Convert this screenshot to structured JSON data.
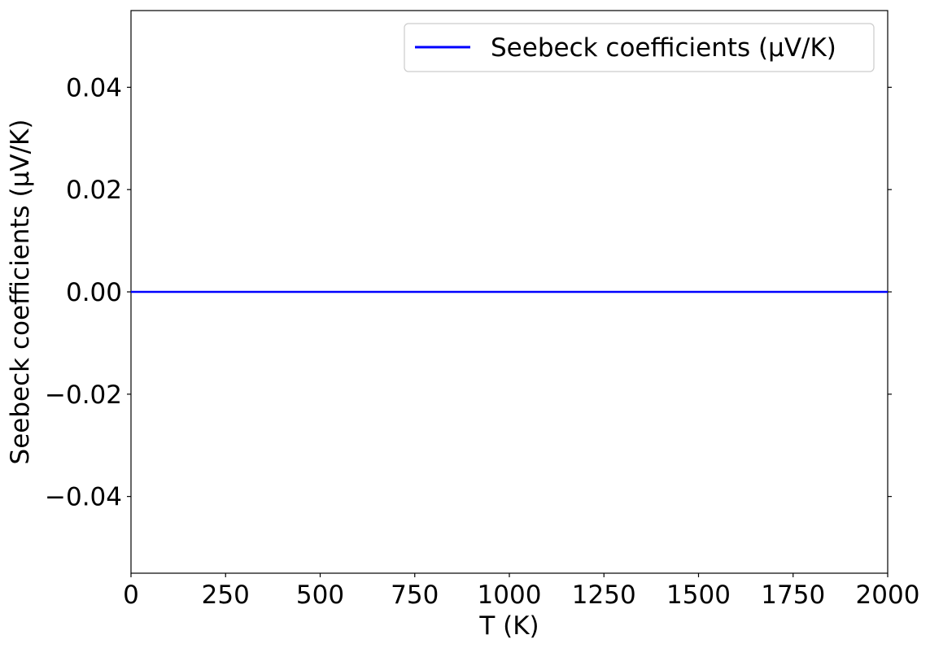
{
  "chart_data": {
    "type": "line",
    "title": "",
    "xlabel": "T (K)",
    "ylabel": "Seebeck coefficients (µV/K)",
    "xlim": [
      0,
      2000
    ],
    "ylim": [
      -0.055,
      0.055
    ],
    "x_ticks": [
      0,
      250,
      500,
      750,
      1000,
      1250,
      1500,
      1750,
      2000
    ],
    "x_tick_labels": [
      "0",
      "250",
      "500",
      "750",
      "1000",
      "1250",
      "1500",
      "1750",
      "2000"
    ],
    "y_ticks": [
      -0.04,
      -0.02,
      0.0,
      0.02,
      0.04
    ],
    "y_tick_labels": [
      "−0.04",
      "−0.02",
      "0.00",
      "0.02",
      "0.04"
    ],
    "grid": false,
    "legend_position": "top-right",
    "series": [
      {
        "name": "Seebeck coefficients (µV/K)",
        "color": "#0000ff",
        "x": [
          0,
          250,
          500,
          750,
          1000,
          1250,
          1500,
          1750,
          2000
        ],
        "y": [
          0,
          0,
          0,
          0,
          0,
          0,
          0,
          0,
          0
        ]
      }
    ]
  }
}
